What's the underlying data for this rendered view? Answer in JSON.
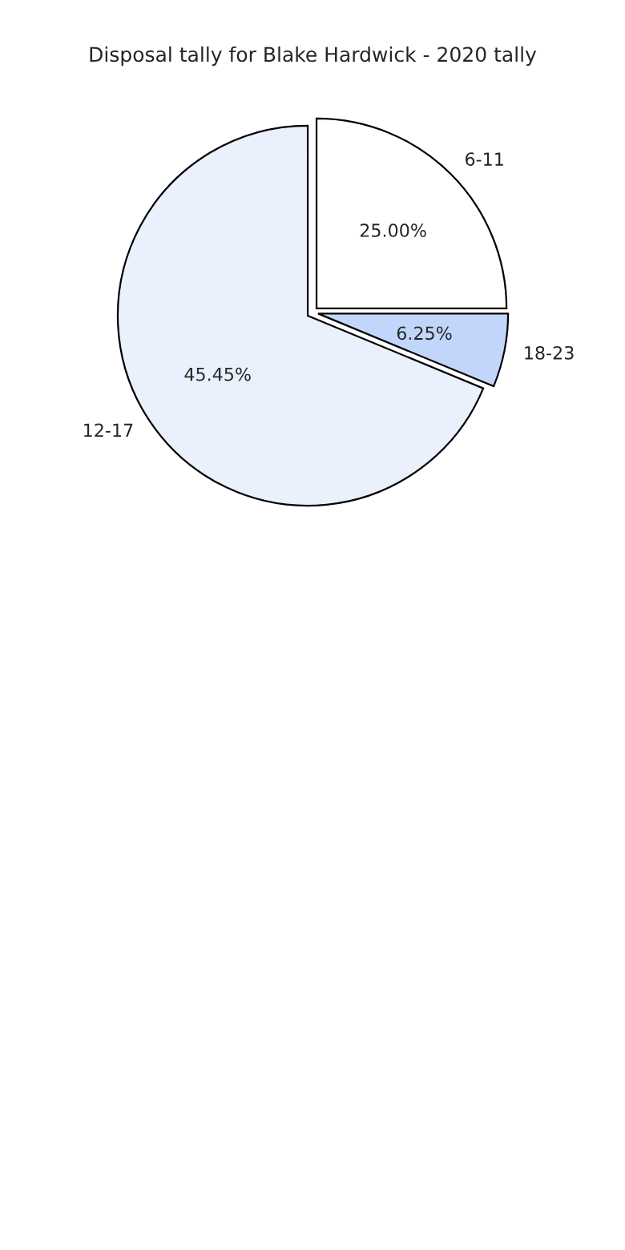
{
  "chart_data": {
    "type": "pie",
    "title": "Disposal tally for Blake Hardwick - 2020 tally",
    "categories": [
      "6-11",
      "12-17",
      "18-23"
    ],
    "values": [
      25,
      68.75,
      6.25
    ],
    "annotations": [
      "25.00%",
      "45.45%",
      "6.25%"
    ],
    "colors": [
      "#ffffff",
      "#eaf1fd",
      "#c2d6fb"
    ]
  }
}
